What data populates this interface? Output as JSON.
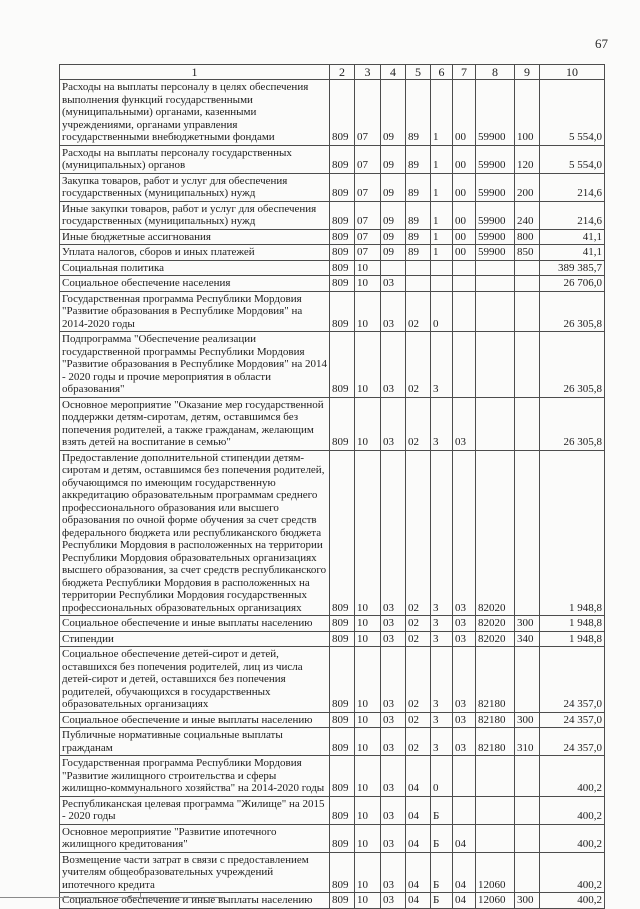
{
  "page": {
    "number": "67"
  },
  "table": {
    "headers": [
      "1",
      "2",
      "3",
      "4",
      "5",
      "6",
      "7",
      "8",
      "9",
      "10"
    ],
    "rows": [
      [
        "Расходы на выплаты персоналу в целях обеспечения выполнения функций государственными (муниципальными) органами, казенными учреждениями, органами управления государственными внебюджетными фондами",
        "809",
        "07",
        "09",
        "89",
        "1",
        "00",
        "59900",
        "100",
        "5 554,0"
      ],
      [
        "Расходы на выплаты персоналу государственных (муниципальных) органов",
        "809",
        "07",
        "09",
        "89",
        "1",
        "00",
        "59900",
        "120",
        "5 554,0"
      ],
      [
        "Закупка товаров, работ и услуг для обеспечения государственных (муниципальных) нужд",
        "809",
        "07",
        "09",
        "89",
        "1",
        "00",
        "59900",
        "200",
        "214,6"
      ],
      [
        "Иные закупки товаров, работ и услуг для обеспечения государственных (муниципальных) нужд",
        "809",
        "07",
        "09",
        "89",
        "1",
        "00",
        "59900",
        "240",
        "214,6"
      ],
      [
        "Иные бюджетные ассигнования",
        "809",
        "07",
        "09",
        "89",
        "1",
        "00",
        "59900",
        "800",
        "41,1"
      ],
      [
        "Уплата налогов, сборов и иных платежей",
        "809",
        "07",
        "09",
        "89",
        "1",
        "00",
        "59900",
        "850",
        "41,1"
      ],
      [
        "Социальная политика",
        "809",
        "10",
        "",
        "",
        "",
        "",
        "",
        "",
        "389 385,7"
      ],
      [
        "Социальное обеспечение населения",
        "809",
        "10",
        "03",
        "",
        "",
        "",
        "",
        "",
        "26 706,0"
      ],
      [
        "Государственная программа Республики Мордовия \"Развитие образования в Республике Мордовия\" на 2014-2020 годы",
        "809",
        "10",
        "03",
        "02",
        "0",
        "",
        "",
        "",
        "26 305,8"
      ],
      [
        "Подпрограмма \"Обеспечение реализации государственной программы Республики Мордовия \"Развитие образования в Республике Мордовия\" на 2014 - 2020 годы и прочие мероприятия в области образования\"",
        "809",
        "10",
        "03",
        "02",
        "3",
        "",
        "",
        "",
        "26 305,8"
      ],
      [
        "Основное мероприятие \"Оказание мер государственной поддержки детям-сиротам, детям, оставшимся без попечения родителей, а также гражданам, желающим взять детей на воспитание в семью\"",
        "809",
        "10",
        "03",
        "02",
        "3",
        "03",
        "",
        "",
        "26 305,8"
      ],
      [
        "Предоставление дополнительной стипендии детям-сиротам и детям, оставшимся без попечения родителей, обучающимся по имеющим государственную аккредитацию образовательным программам среднего профессионального образования или высшего образования по очной форме обучения за счет средств федерального бюджета или республиканского бюджета Республики Мордовия в расположенных на территории Республики Мордовия образовательных организациях высшего образования, за счет средств республиканского бюджета Республики Мордовия в расположенных на территории Республики Мордовия государственных профессиональных образовательных организациях",
        "809",
        "10",
        "03",
        "02",
        "3",
        "03",
        "82020",
        "",
        "1 948,8"
      ],
      [
        "Социальное обеспечение и иные выплаты населению",
        "809",
        "10",
        "03",
        "02",
        "3",
        "03",
        "82020",
        "300",
        "1 948,8"
      ],
      [
        "Стипендии",
        "809",
        "10",
        "03",
        "02",
        "3",
        "03",
        "82020",
        "340",
        "1 948,8"
      ],
      [
        "Социальное обеспечение детей-сирот и детей, оставшихся без попечения родителей, лиц из числа детей-сирот и детей, оставшихся без попечения родителей, обучающихся в государственных образовательных организациях",
        "809",
        "10",
        "03",
        "02",
        "3",
        "03",
        "82180",
        "",
        "24 357,0"
      ],
      [
        "Социальное обеспечение и иные выплаты населению",
        "809",
        "10",
        "03",
        "02",
        "3",
        "03",
        "82180",
        "300",
        "24 357,0"
      ],
      [
        "Публичные нормативные социальные выплаты гражданам",
        "809",
        "10",
        "03",
        "02",
        "3",
        "03",
        "82180",
        "310",
        "24 357,0"
      ],
      [
        "Государственная программа Республики Мордовия \"Развитие жилищного строительства и сферы жилищно-коммунального хозяйства\" на 2014-2020 годы",
        "809",
        "10",
        "03",
        "04",
        "0",
        "",
        "",
        "",
        "400,2"
      ],
      [
        "Республиканская целевая программа \"Жилище\" на 2015 - 2020 годы",
        "809",
        "10",
        "03",
        "04",
        "Б",
        "",
        "",
        "",
        "400,2"
      ],
      [
        "Основное мероприятие \"Развитие ипотечного жилищного кредитования\"",
        "809",
        "10",
        "03",
        "04",
        "Б",
        "04",
        "",
        "",
        "400,2"
      ],
      [
        "Возмещение части затрат в связи с предоставлением учителям общеобразовательных учреждений ипотечного кредита",
        "809",
        "10",
        "03",
        "04",
        "Б",
        "04",
        "12060",
        "",
        "400,2"
      ],
      [
        "Социальное обеспечение и иные выплаты населению",
        "809",
        "10",
        "03",
        "04",
        "Б",
        "04",
        "12060",
        "300",
        "400,2"
      ]
    ]
  }
}
